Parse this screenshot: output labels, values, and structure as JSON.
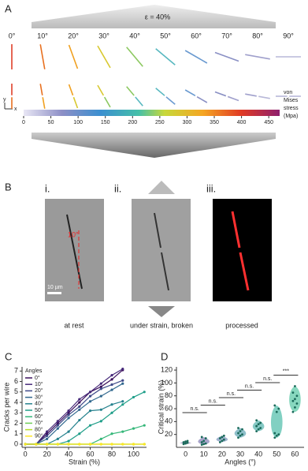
{
  "figure": {
    "panel_a": {
      "label": "A",
      "strain": "ε = 40%",
      "angles": [
        "0°",
        "10°",
        "20°",
        "30°",
        "40°",
        "50°",
        "60°",
        "70°",
        "80°",
        "90°"
      ],
      "axis_y": "y",
      "axis_x": "x",
      "colorbar": {
        "lim": [
          0,
          470
        ],
        "ticks": [
          0,
          50,
          100,
          150,
          200,
          250,
          300,
          350,
          400,
          450
        ],
        "label_lines": [
          "von",
          "Mises",
          "stress",
          "(Mpa)"
        ]
      }
    },
    "panel_b": {
      "label": "B",
      "i": "i.",
      "ii": "ii.",
      "iii": "iii.",
      "angle": "10°",
      "scale": "10 µm",
      "captions": [
        "at rest",
        "under strain, broken",
        "processed"
      ]
    },
    "panel_c_label": "C",
    "panel_d_label": "D"
  },
  "chart_data": [
    {
      "type": "line",
      "x_label": "Strain (%)",
      "y_label": "Cracks per wire",
      "legend_title": "Angles",
      "legend": "upper left",
      "x": [
        0,
        10,
        20,
        30,
        40,
        50,
        60,
        70,
        80,
        90,
        100,
        110
      ],
      "xlim": [
        -3,
        112
      ],
      "ylim": [
        -0.3,
        7.4
      ],
      "xticks": [
        0,
        20,
        40,
        60,
        80,
        100
      ],
      "yticks": [
        0,
        1,
        2,
        3,
        4,
        5,
        6,
        7
      ],
      "series": [
        {
          "name": "0°",
          "color": "#3b0f5c",
          "values": [
            0,
            0,
            1,
            2,
            3,
            4,
            5,
            5.5,
            6.2,
            7.1,
            null,
            null
          ]
        },
        {
          "name": "10°",
          "color": "#472a7a",
          "values": [
            0,
            0,
            1.2,
            2.2,
            3.2,
            4.3,
            5,
            5.8,
            6.6,
            7.2,
            null,
            null
          ]
        },
        {
          "name": "20°",
          "color": "#3e4a89",
          "values": [
            0,
            0,
            0.8,
            1.8,
            2.8,
            3.6,
            4.6,
            5.3,
            5.7,
            6.1,
            null,
            null
          ]
        },
        {
          "name": "30°",
          "color": "#31688e",
          "values": [
            0,
            0,
            0.5,
            1.5,
            2.5,
            3.3,
            4.1,
            4.6,
            5.2,
            5.8,
            null,
            null
          ]
        },
        {
          "name": "40°",
          "color": "#26828e",
          "values": [
            0,
            0,
            0,
            0.5,
            1.2,
            2.3,
            3.2,
            3.3,
            3.8,
            4.1,
            null,
            null
          ]
        },
        {
          "name": "50°",
          "color": "#1f9e89",
          "values": [
            0,
            0,
            0,
            0,
            0.3,
            1,
            1.8,
            2.2,
            3,
            3.8,
            4.5,
            5
          ]
        },
        {
          "name": "60°",
          "color": "#35b779",
          "values": [
            0,
            0,
            0,
            0,
            0,
            0,
            0,
            0.5,
            1,
            1.2,
            1.5,
            1.8
          ]
        },
        {
          "name": "70°",
          "color": "#6ece58",
          "values": [
            0,
            0,
            0,
            0,
            0,
            0,
            0,
            0,
            0,
            0,
            0,
            0
          ]
        },
        {
          "name": "80°",
          "color": "#b5de2b",
          "values": [
            0,
            0,
            0,
            0,
            0,
            0,
            0,
            0,
            0,
            0,
            0,
            0
          ]
        },
        {
          "name": "90°",
          "color": "#fde725",
          "values": [
            0,
            0,
            0,
            0,
            0,
            0,
            0,
            0,
            0,
            0,
            0,
            0
          ]
        }
      ]
    },
    {
      "type": "violin",
      "x_label": "Angles (°)",
      "y_label": "Critical strain (%)",
      "categories": [
        "0",
        "10",
        "20",
        "30",
        "40",
        "50",
        "60"
      ],
      "colors": [
        "#8a82b0",
        "#8a86b8",
        "#7f98bd",
        "#6aaab8",
        "#5db7b2",
        "#57c0ad",
        "#5fc9a8"
      ],
      "values": [
        [
          5,
          6,
          7,
          8,
          9,
          10
        ],
        [
          4,
          5,
          6,
          8,
          10,
          14,
          16
        ],
        [
          8,
          10,
          12,
          14,
          16,
          18
        ],
        [
          15,
          18,
          20,
          22,
          25,
          28,
          30
        ],
        [
          25,
          28,
          30,
          33,
          36,
          38,
          42
        ],
        [
          15,
          18,
          20,
          22,
          55,
          60,
          65
        ],
        [
          55,
          62,
          68,
          72,
          75,
          80,
          85,
          95
        ]
      ],
      "ylim": [
        0,
        125
      ],
      "yticks": [
        20,
        40,
        60,
        80,
        100,
        120
      ],
      "annotations": [
        "n.s.",
        "n.s.",
        "n.s.",
        "n.s.",
        "n.s.",
        "***"
      ]
    }
  ]
}
